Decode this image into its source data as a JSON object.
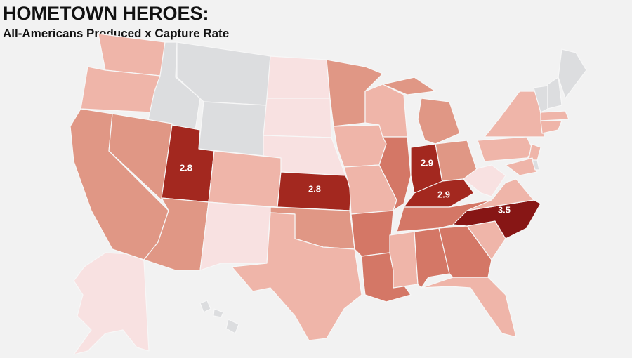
{
  "header": {
    "title": "HOMETOWN HEROES:",
    "subtitle": "All-Americans Produced x Capture Rate"
  },
  "map": {
    "labels": [
      2.8,
      2.8,
      2.9,
      2.9,
      3.5
    ]
  }
}
